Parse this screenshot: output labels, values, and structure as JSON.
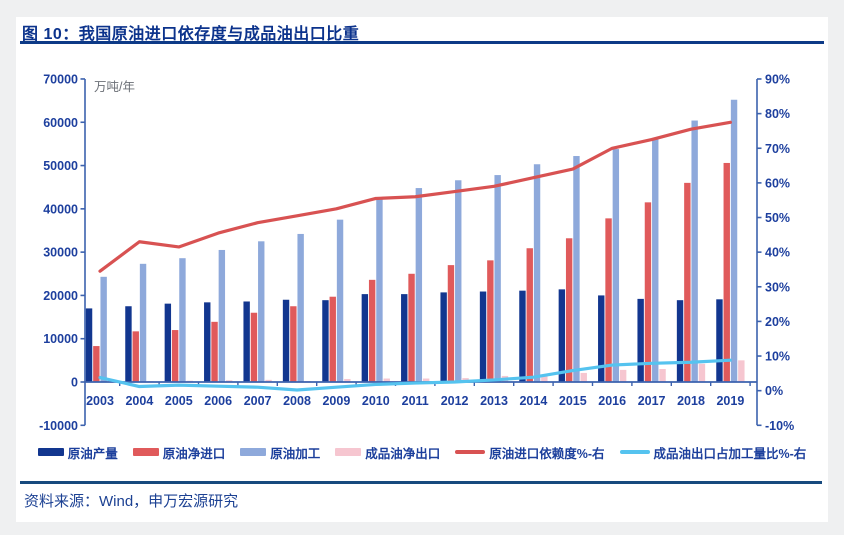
{
  "page": {
    "title": "图 10：我国原油进口依存度与成品油出口比重",
    "source": "资料来源：Wind，申万宏源研究"
  },
  "colors": {
    "title": "#0c338c",
    "rule_top": "#0d3a87",
    "rule_bottom": "#174a7e",
    "axis_line": "#3c62ae",
    "tick_label": "#1d3f9e",
    "unit_label": "#6b6f76",
    "source_text": "#1c4193"
  },
  "chart_data": {
    "type": "bar",
    "subtype": "combo-bar-line-dual-axis",
    "title": "图 10：我国原油进口依存度与成品油出口比重",
    "unit_label": "万吨/年",
    "grid": false,
    "legend_position": "bottom",
    "categories": [
      "2003",
      "2004",
      "2005",
      "2006",
      "2007",
      "2008",
      "2009",
      "2010",
      "2011",
      "2012",
      "2013",
      "2014",
      "2015",
      "2016",
      "2017",
      "2018",
      "2019"
    ],
    "left_axis": {
      "min": -10000,
      "max": 70000,
      "step": 10000,
      "tick_labels": [
        "70000",
        "60000",
        "50000",
        "40000",
        "30000",
        "20000",
        "10000",
        "0",
        "-10000"
      ]
    },
    "right_axis": {
      "min": -10,
      "max": 90,
      "step": 10,
      "tick_labels": [
        "90%",
        "80%",
        "70%",
        "60%",
        "50%",
        "40%",
        "30%",
        "20%",
        "10%",
        "0%",
        "-10%"
      ]
    },
    "series": [
      {
        "key": "crude-production",
        "name": "原油产量",
        "type": "bar",
        "axis": "left",
        "color": "#12368f",
        "values": [
          17000,
          17500,
          18100,
          18400,
          18600,
          19000,
          18900,
          20300,
          20300,
          20700,
          20900,
          21100,
          21400,
          20000,
          19200,
          18900,
          19100
        ]
      },
      {
        "key": "crude-net-import",
        "name": "原油净进口",
        "type": "bar",
        "axis": "left",
        "color": "#e05a5b",
        "values": [
          8300,
          11700,
          12000,
          13900,
          16000,
          17500,
          19700,
          23600,
          25000,
          27000,
          28100,
          30900,
          33200,
          37800,
          41500,
          46000,
          50600
        ]
      },
      {
        "key": "crude-processing",
        "name": "原油加工",
        "type": "bar",
        "axis": "left",
        "color": "#8ea9db",
        "values": [
          24300,
          27300,
          28600,
          30500,
          32500,
          34200,
          37500,
          42600,
          44800,
          46600,
          47800,
          50300,
          52200,
          53800,
          56100,
          60400,
          65200
        ]
      },
      {
        "key": "refined-net-export",
        "name": "成品油净出口",
        "type": "bar",
        "axis": "left",
        "color": "#f6c6d0",
        "values": [
          400,
          200,
          300,
          400,
          500,
          200,
          700,
          800,
          800,
          900,
          1400,
          1600,
          2100,
          2800,
          3000,
          4200,
          5000
        ]
      },
      {
        "key": "import-dependency",
        "name": "原油进口依赖度%-右",
        "type": "line",
        "axis": "right",
        "color": "#d85252",
        "values": [
          34.5,
          43,
          41.5,
          45.5,
          48.5,
          50.5,
          52.5,
          55.5,
          56,
          57.5,
          59,
          61.5,
          64,
          70,
          72.5,
          75.5,
          77.5
        ]
      },
      {
        "key": "export-to-processing-ratio",
        "name": "成品油出口占加工量比%-右",
        "type": "line",
        "axis": "right",
        "color": "#55c3ef",
        "values": [
          3.8,
          1.2,
          1.6,
          1.3,
          1.0,
          0.2,
          1.0,
          1.8,
          2.2,
          2.5,
          3.1,
          3.9,
          5.8,
          7.4,
          7.9,
          8.2,
          8.8
        ]
      }
    ]
  }
}
